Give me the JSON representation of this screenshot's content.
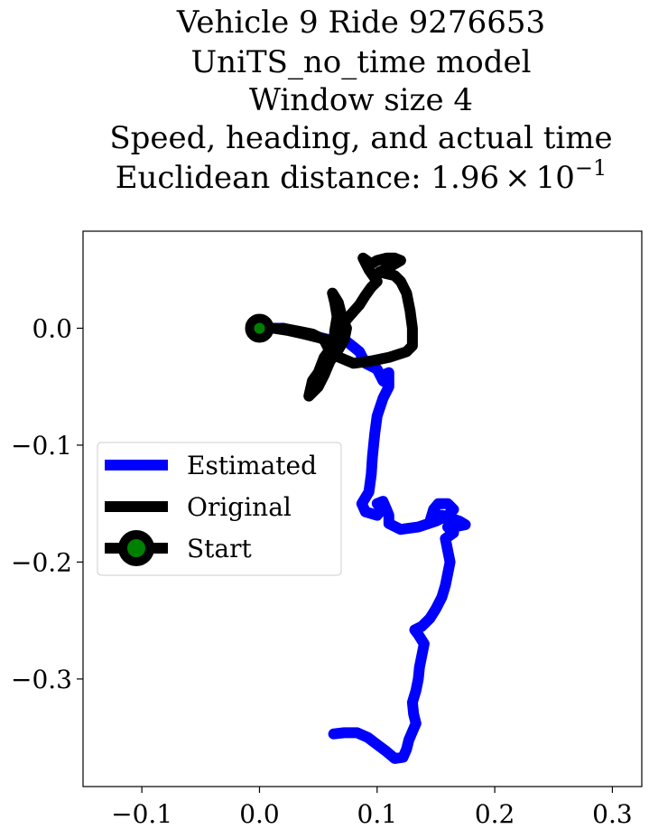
{
  "chart_data": {
    "type": "line",
    "title_lines": [
      "Vehicle 9 Ride 9276653",
      "UniTS_no_time model",
      "Window size 4",
      "Speed, heading, and actual time"
    ],
    "title_last_prefix": "Euclidean distance: 1.96",
    "title_last_times": "×",
    "title_last_base": "10",
    "title_last_exp": "−1",
    "xlabel": "",
    "ylabel": "",
    "xlim": [
      -0.15,
      0.325
    ],
    "ylim": [
      -0.392,
      0.083
    ],
    "x_ticks": [
      -0.1,
      0.0,
      0.1,
      0.2,
      0.3
    ],
    "x_tick_labels": [
      "−0.1",
      "0.0",
      "0.1",
      "0.2",
      "0.3"
    ],
    "y_ticks": [
      0.0,
      -0.1,
      -0.2,
      -0.3
    ],
    "y_tick_labels": [
      "0.0",
      "−0.1",
      "−0.2",
      "−0.3"
    ],
    "grid": false,
    "legend_position": "center-left",
    "series": [
      {
        "name": "Estimated",
        "color": "#0000ff",
        "points": [
          [
            0.0,
            0.0
          ],
          [
            0.02,
            0.0
          ],
          [
            0.04,
            -0.005
          ],
          [
            0.06,
            -0.01
          ],
          [
            0.075,
            -0.012
          ],
          [
            0.085,
            -0.02
          ],
          [
            0.09,
            -0.03
          ],
          [
            0.1,
            -0.035
          ],
          [
            0.105,
            -0.045
          ],
          [
            0.11,
            -0.048
          ],
          [
            0.105,
            -0.04
          ],
          [
            0.11,
            -0.038
          ],
          [
            0.11,
            -0.05
          ],
          [
            0.105,
            -0.06
          ],
          [
            0.1,
            -0.075
          ],
          [
            0.098,
            -0.09
          ],
          [
            0.097,
            -0.1
          ],
          [
            0.096,
            -0.11
          ],
          [
            0.095,
            -0.125
          ],
          [
            0.093,
            -0.14
          ],
          [
            0.087,
            -0.15
          ],
          [
            0.09,
            -0.157
          ],
          [
            0.1,
            -0.16
          ],
          [
            0.104,
            -0.155
          ],
          [
            0.1,
            -0.15
          ],
          [
            0.105,
            -0.148
          ],
          [
            0.108,
            -0.155
          ],
          [
            0.11,
            -0.16
          ],
          [
            0.11,
            -0.167
          ],
          [
            0.12,
            -0.172
          ],
          [
            0.135,
            -0.17
          ],
          [
            0.15,
            -0.165
          ],
          [
            0.16,
            -0.16
          ],
          [
            0.165,
            -0.155
          ],
          [
            0.16,
            -0.15
          ],
          [
            0.152,
            -0.15
          ],
          [
            0.148,
            -0.155
          ],
          [
            0.145,
            -0.165
          ],
          [
            0.155,
            -0.16
          ],
          [
            0.17,
            -0.165
          ],
          [
            0.175,
            -0.168
          ],
          [
            0.165,
            -0.17
          ],
          [
            0.16,
            -0.17
          ],
          [
            0.165,
            -0.175
          ],
          [
            0.158,
            -0.18
          ],
          [
            0.16,
            -0.19
          ],
          [
            0.162,
            -0.2
          ],
          [
            0.16,
            -0.21
          ],
          [
            0.158,
            -0.22
          ],
          [
            0.155,
            -0.23
          ],
          [
            0.15,
            -0.24
          ],
          [
            0.145,
            -0.248
          ],
          [
            0.138,
            -0.255
          ],
          [
            0.132,
            -0.258
          ],
          [
            0.135,
            -0.262
          ],
          [
            0.14,
            -0.27
          ],
          [
            0.138,
            -0.28
          ],
          [
            0.136,
            -0.29
          ],
          [
            0.135,
            -0.3
          ],
          [
            0.133,
            -0.31
          ],
          [
            0.13,
            -0.32
          ],
          [
            0.131,
            -0.33
          ],
          [
            0.133,
            -0.338
          ],
          [
            0.13,
            -0.345
          ],
          [
            0.127,
            -0.352
          ],
          [
            0.125,
            -0.36
          ],
          [
            0.122,
            -0.367
          ],
          [
            0.115,
            -0.368
          ],
          [
            0.108,
            -0.362
          ],
          [
            0.1,
            -0.356
          ],
          [
            0.092,
            -0.35
          ],
          [
            0.083,
            -0.346
          ],
          [
            0.072,
            -0.346
          ],
          [
            0.063,
            -0.347
          ]
        ]
      },
      {
        "name": "Original",
        "color": "#000000",
        "points": [
          [
            0.0,
            0.0
          ],
          [
            0.012,
            0.0
          ],
          [
            0.025,
            -0.002
          ],
          [
            0.038,
            -0.005
          ],
          [
            0.05,
            -0.008
          ],
          [
            0.058,
            -0.01
          ],
          [
            0.06,
            -0.018
          ],
          [
            0.055,
            -0.025
          ],
          [
            0.05,
            -0.038
          ],
          [
            0.045,
            -0.045
          ],
          [
            0.042,
            -0.058
          ],
          [
            0.05,
            -0.05
          ],
          [
            0.055,
            -0.04
          ],
          [
            0.06,
            -0.028
          ],
          [
            0.063,
            -0.015
          ],
          [
            0.064,
            -0.002
          ],
          [
            0.066,
            0.01
          ],
          [
            0.064,
            0.022
          ],
          [
            0.062,
            0.03
          ],
          [
            0.067,
            0.022
          ],
          [
            0.07,
            0.01
          ],
          [
            0.074,
            0.0
          ],
          [
            0.072,
            -0.01
          ],
          [
            0.066,
            -0.02
          ],
          [
            0.06,
            -0.028
          ],
          [
            0.064,
            -0.015
          ],
          [
            0.067,
            -0.005
          ],
          [
            0.072,
            0.005
          ],
          [
            0.078,
            0.012
          ],
          [
            0.085,
            0.02
          ],
          [
            0.09,
            0.028
          ],
          [
            0.095,
            0.035
          ],
          [
            0.1,
            0.04
          ],
          [
            0.093,
            0.05
          ],
          [
            0.088,
            0.06
          ],
          [
            0.095,
            0.055
          ],
          [
            0.1,
            0.058
          ],
          [
            0.108,
            0.06
          ],
          [
            0.115,
            0.06
          ],
          [
            0.12,
            0.058
          ],
          [
            0.11,
            0.052
          ],
          [
            0.102,
            0.048
          ],
          [
            0.115,
            0.045
          ],
          [
            0.12,
            0.04
          ],
          [
            0.125,
            0.03
          ],
          [
            0.128,
            0.015
          ],
          [
            0.13,
            0.0
          ],
          [
            0.13,
            -0.015
          ],
          [
            0.125,
            -0.02
          ],
          [
            0.11,
            -0.025
          ],
          [
            0.095,
            -0.028
          ],
          [
            0.08,
            -0.03
          ],
          [
            0.068,
            -0.025
          ],
          [
            0.06,
            -0.02
          ],
          [
            0.055,
            -0.01
          ],
          [
            0.045,
            -0.005
          ],
          [
            0.035,
            -0.003
          ],
          [
            0.02,
            0.0
          ]
        ]
      }
    ],
    "start_point": {
      "name": "Start",
      "x": 0.0,
      "y": 0.0,
      "marker_color": "#008000",
      "edge_color": "#000000"
    }
  }
}
